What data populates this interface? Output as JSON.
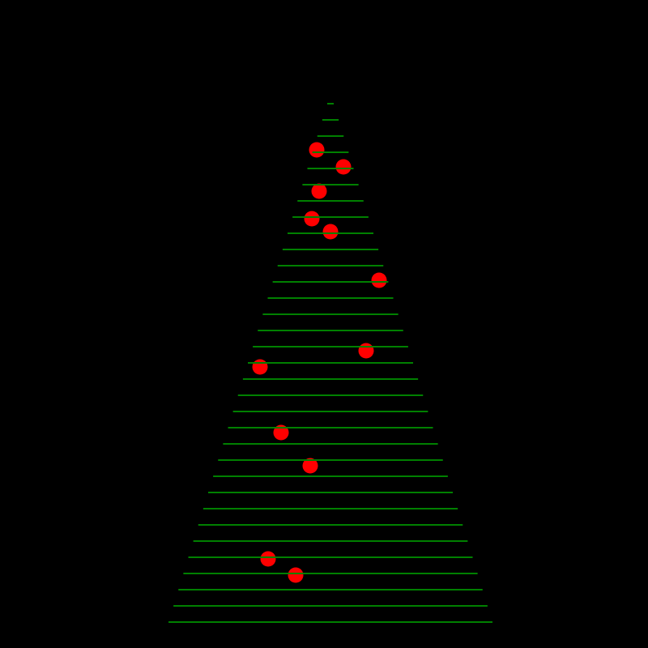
{
  "scene": {
    "background_color": "#000000",
    "line_color": "#008000",
    "dot_color": "#ff0000",
    "line_count": 33,
    "dot_count": 12
  }
}
